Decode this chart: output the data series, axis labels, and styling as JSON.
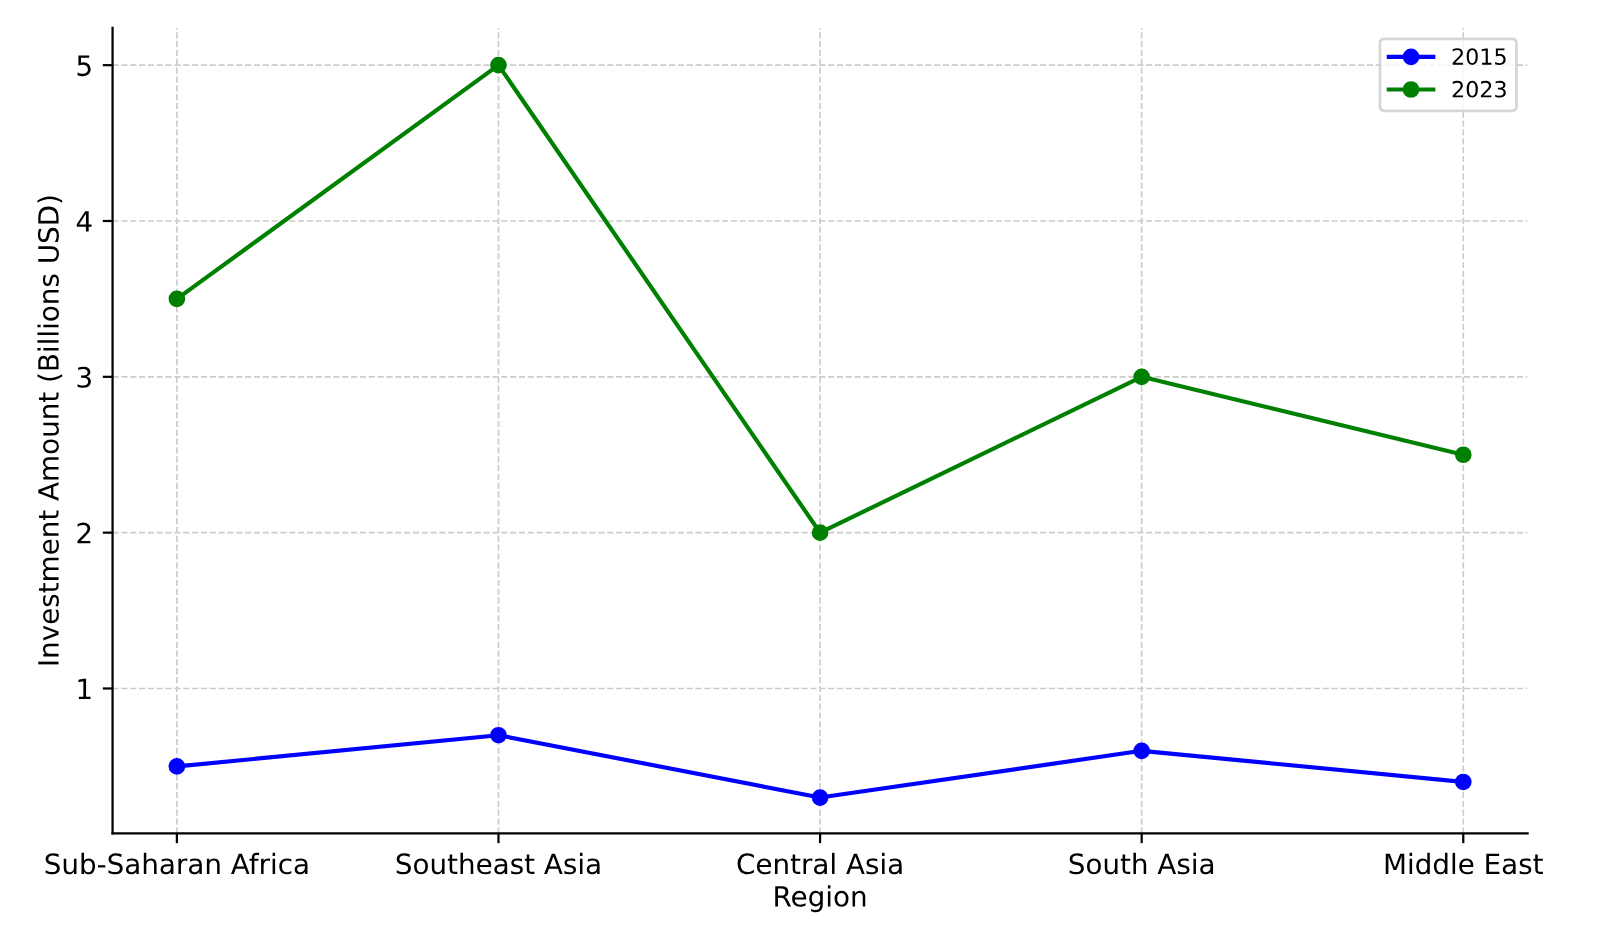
{
  "chart_data": {
    "type": "line",
    "xlabel": "Region",
    "ylabel": "Investment Amount (Billions USD)",
    "categories": [
      "Sub-Saharan Africa",
      "Southeast Asia",
      "Central Asia",
      "South Asia",
      "Middle East"
    ],
    "series": [
      {
        "name": "2015",
        "color": "#0000ff",
        "values": [
          0.5,
          0.7,
          0.3,
          0.6,
          0.4
        ]
      },
      {
        "name": "2023",
        "color": "#008000",
        "values": [
          3.5,
          5,
          2,
          3,
          2.5
        ]
      }
    ],
    "ylim": [
      0.07,
      5.24
    ],
    "yticks": [
      1,
      2,
      3,
      4,
      5
    ],
    "grid": true,
    "legend": "top right",
    "marker": "circle",
    "line_style": "solid"
  }
}
